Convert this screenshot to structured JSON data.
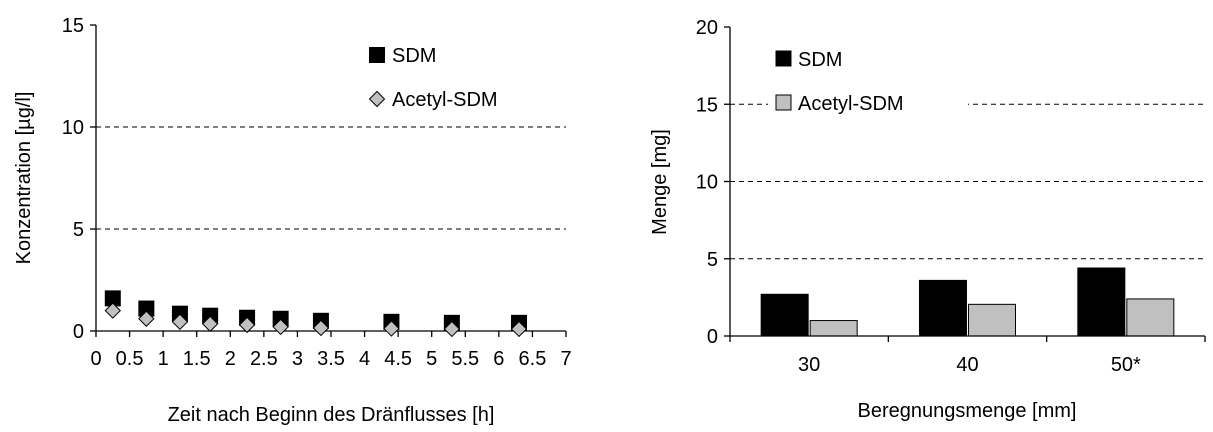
{
  "chart_data": [
    {
      "type": "scatter",
      "xlabel": "Zeit nach Beginn des Dränflusses [h]",
      "ylabel": "Konzentration [µg/l]",
      "xlim": [
        0,
        7
      ],
      "ylim": [
        0,
        15
      ],
      "xticks": [
        "0",
        "0.5",
        "1",
        "1.5",
        "2",
        "2.5",
        "3",
        "3.5",
        "4",
        "4.5",
        "5",
        "5.5",
        "6",
        "6.5",
        "7"
      ],
      "yticks": [
        "0",
        "5",
        "10",
        "15"
      ],
      "grid": "horizontal dashed",
      "legend_position": "top-right",
      "series": [
        {
          "name": "SDM",
          "marker": "square",
          "color": "#000000",
          "x": [
            0.25,
            0.75,
            1.25,
            1.7,
            2.25,
            2.75,
            3.35,
            4.4,
            5.3,
            6.3
          ],
          "y": [
            1.6,
            1.1,
            0.85,
            0.75,
            0.65,
            0.6,
            0.5,
            0.45,
            0.4,
            0.4
          ]
        },
        {
          "name": "Acetyl-SDM",
          "marker": "diamond",
          "color": "#c0c0c0",
          "x": [
            0.25,
            0.75,
            1.25,
            1.7,
            2.25,
            2.75,
            3.35,
            4.4,
            5.3,
            6.3
          ],
          "y": [
            1.0,
            0.6,
            0.45,
            0.35,
            0.3,
            0.2,
            0.15,
            0.12,
            0.1,
            0.1
          ]
        }
      ]
    },
    {
      "type": "bar",
      "xlabel": "Beregnungsmenge [mm]",
      "ylabel": "Menge [mg]",
      "ylim": [
        0,
        20
      ],
      "yticks": [
        "0",
        "5",
        "10",
        "15",
        "20"
      ],
      "categories": [
        "30",
        "40",
        "50*"
      ],
      "grid": "horizontal dashed",
      "legend_position": "top-left",
      "series": [
        {
          "name": "SDM",
          "color": "#000000",
          "values": [
            2.7,
            3.6,
            4.4
          ]
        },
        {
          "name": "Acetyl-SDM",
          "color": "#c0c0c0",
          "values": [
            1.0,
            2.05,
            2.4
          ]
        }
      ]
    }
  ]
}
